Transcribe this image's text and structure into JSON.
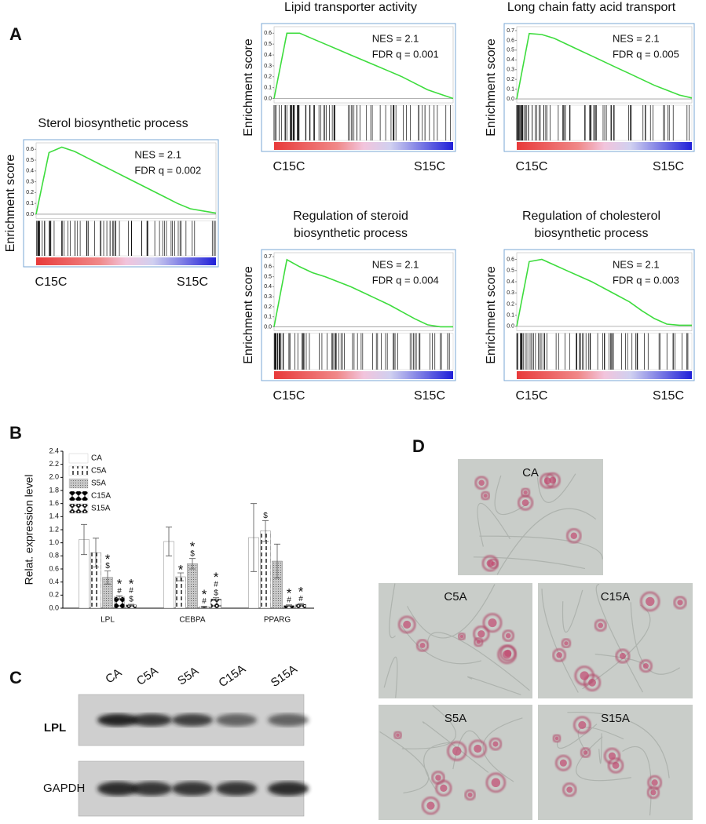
{
  "panel_labels": [
    "A",
    "B",
    "C",
    "D"
  ],
  "chart_data": [
    {
      "type": "enrichment",
      "title": [
        "Sterol biosynthetic process"
      ],
      "ylabel": "Enrichment score",
      "values": [
        0,
        0.57,
        0.62,
        0.58,
        0.52,
        0.46,
        0.4,
        0.34,
        0.28,
        0.22,
        0.16,
        0.1,
        0.05,
        0.03,
        0.01
      ],
      "ylim": [
        -0.04,
        0.66
      ],
      "yticks": [
        {
          "value": 0,
          "label": "0.0"
        },
        0.1,
        0.2,
        0.3,
        0.4,
        0.5,
        0.6
      ],
      "annotations": [
        "NES = 2.1",
        "FDR q = 0.002"
      ],
      "x_labels": [
        "C15C",
        "S15C"
      ],
      "color": "#3ddc3d"
    },
    {
      "type": "enrichment",
      "title": [
        "Lipid transporter activity"
      ],
      "ylabel": "Enrichment score",
      "values": [
        0,
        0.6,
        0.6,
        0.55,
        0.5,
        0.45,
        0.4,
        0.35,
        0.3,
        0.25,
        0.2,
        0.14,
        0.08,
        0.04,
        0
      ],
      "ylim": [
        -0.04,
        0.66
      ],
      "yticks": [
        {
          "value": 0,
          "label": "0.0"
        },
        0.1,
        0.2,
        0.3,
        0.4,
        0.5,
        0.6
      ],
      "annotations": [
        "NES = 2.1",
        "FDR q = 0.001"
      ],
      "x_labels": [
        "C15C",
        "S15C"
      ],
      "color": "#3ddc3d"
    },
    {
      "type": "enrichment",
      "title": [
        "Long chain fatty acid transport"
      ],
      "ylabel": "Enrichment score",
      "values": [
        0,
        0.67,
        0.66,
        0.62,
        0.56,
        0.5,
        0.44,
        0.38,
        0.32,
        0.26,
        0.2,
        0.14,
        0.09,
        0.04,
        0.01
      ],
      "ylim": [
        -0.04,
        0.74
      ],
      "yticks": [
        {
          "value": 0,
          "label": "0.0"
        },
        0.1,
        0.2,
        0.3,
        0.4,
        0.5,
        0.6,
        0.7
      ],
      "annotations": [
        "NES = 2.1",
        "FDR q = 0.005"
      ],
      "x_labels": [
        "C15C",
        "S15C"
      ],
      "color": "#3ddc3d"
    },
    {
      "type": "enrichment",
      "title": [
        "Regulation of steroid",
        "biosynthetic process"
      ],
      "ylabel": "Enrichment score",
      "values": [
        0,
        0.67,
        0.6,
        0.54,
        0.5,
        0.45,
        0.4,
        0.34,
        0.28,
        0.22,
        0.15,
        0.08,
        0.02,
        0,
        0
      ],
      "ylim": [
        -0.04,
        0.74
      ],
      "yticks": [
        {
          "value": 0,
          "label": "0.0"
        },
        0.1,
        0.2,
        0.3,
        0.4,
        0.5,
        0.6,
        0.7
      ],
      "annotations": [
        "NES = 2.1",
        "FDR q = 0.004"
      ],
      "x_labels": [
        "C15C",
        "S15C"
      ],
      "color": "#3ddc3d"
    },
    {
      "type": "enrichment",
      "title": [
        "Regulation of cholesterol",
        "biosynthetic process"
      ],
      "ylabel": "Enrichment score",
      "values": [
        0,
        0.58,
        0.6,
        0.55,
        0.5,
        0.45,
        0.4,
        0.34,
        0.28,
        0.22,
        0.14,
        0.07,
        0.02,
        0.01,
        0.01
      ],
      "ylim": [
        -0.04,
        0.66
      ],
      "yticks": [
        {
          "value": 0,
          "label": "0.0"
        },
        0.1,
        0.2,
        0.3,
        0.4,
        0.5,
        0.6
      ],
      "annotations": [
        "NES = 2.1",
        "FDR q = 0.003"
      ],
      "x_labels": [
        "C15C",
        "S15C"
      ],
      "color": "#3ddc3d"
    },
    {
      "type": "bar",
      "ylabel": "Relat. expression level",
      "categories": [
        "LPL",
        "CEBPA",
        "PPARG"
      ],
      "ylim": [
        0,
        2.4
      ],
      "yticks": [
        {
          "value": 0,
          "label": "0.0"
        },
        0.2,
        0.4,
        0.6,
        0.8,
        {
          "value": 1,
          "label": "1.0"
        },
        1.2,
        1.4,
        1.6,
        1.8,
        {
          "value": 2,
          "label": "2.0"
        },
        2.2,
        2.4
      ],
      "legend": "top-left",
      "series": [
        {
          "name": "CA",
          "color": "#ffffff",
          "pattern": "none",
          "values": [
            1.05,
            1.02,
            1.08
          ],
          "errors": [
            0.23,
            0.22,
            0.52
          ],
          "annotations": [
            null,
            null,
            null
          ]
        },
        {
          "name": "C5A",
          "color": "#000000",
          "pattern": "dashes",
          "values": [
            0.85,
            0.48,
            1.18
          ],
          "errors": [
            0.22,
            0.06,
            0.16
          ],
          "annotations": [
            null,
            [
              "*"
            ],
            [
              "$"
            ]
          ]
        },
        {
          "name": "S5A",
          "color": "#999999",
          "pattern": "dots",
          "values": [
            0.47,
            0.68,
            0.72
          ],
          "errors": [
            0.1,
            0.08,
            0.26
          ],
          "annotations": [
            [
              "*",
              "$"
            ],
            [
              "*",
              "$"
            ],
            null
          ]
        },
        {
          "name": "C15A",
          "color": "#000000",
          "pattern": "diamonds",
          "values": [
            0.17,
            0.02,
            0.04
          ],
          "errors": [
            0.02,
            0.01,
            0.01
          ],
          "annotations": [
            [
              "*",
              "#"
            ],
            [
              "*",
              "#"
            ],
            [
              "*",
              "#"
            ]
          ]
        },
        {
          "name": "S15A",
          "color": "#000000",
          "pattern": "checker",
          "values": [
            0.05,
            0.14,
            0.06
          ],
          "errors": [
            0.01,
            0.02,
            0.01
          ],
          "annotations": [
            [
              "*",
              "#",
              "$"
            ],
            [
              "*",
              "#",
              "$"
            ],
            [
              "*",
              "#"
            ]
          ]
        }
      ]
    }
  ],
  "blot": {
    "lanes": [
      "CA",
      "C5A",
      "S5A",
      "C15A",
      "S15A"
    ],
    "rows": [
      "LPL",
      "GAPDH"
    ]
  },
  "micrographs": {
    "labels": [
      "CA",
      "C5A",
      "C15A",
      "S5A",
      "S15A"
    ]
  }
}
